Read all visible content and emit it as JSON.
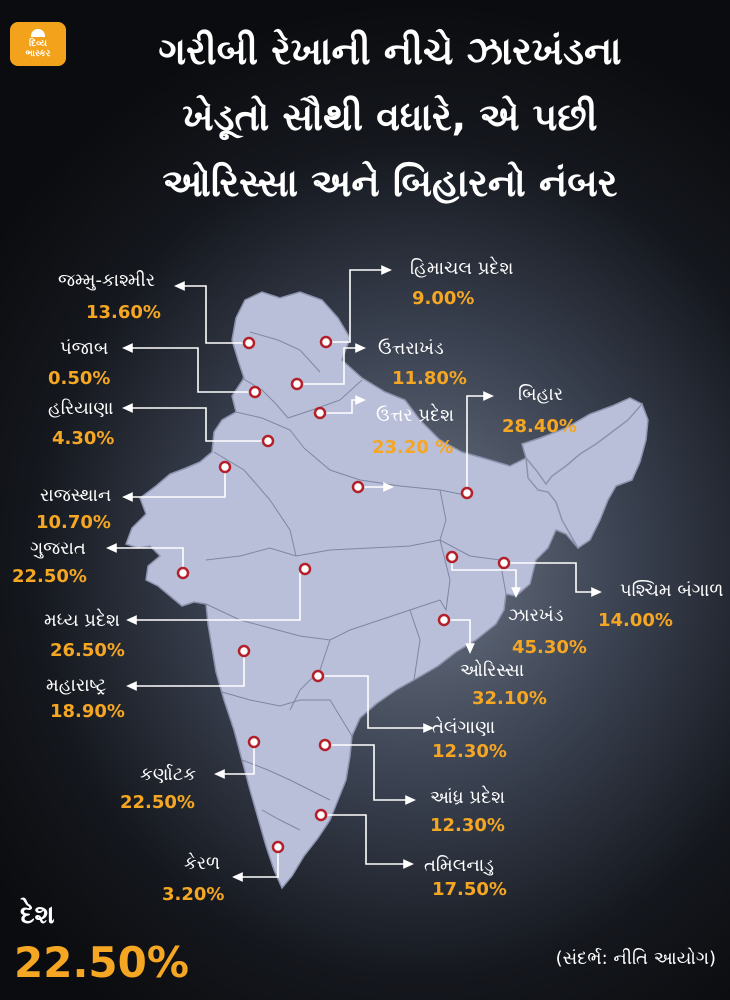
{
  "brand": {
    "line1": "દિવ્ય",
    "line2": "ભાસ્કર"
  },
  "title": [
    "ગરીબી રેખાની નીચે ઝારખંડના",
    "ખેડૂતો સૌથી વધારે, એ પછી",
    "ઓરિસ્સા અને બિહારનો નંબર"
  ],
  "states": [
    {
      "name": "જમ્મુ-કાશ્મીર",
      "value": "13.60%"
    },
    {
      "name": "હિમાચલ પ્રદેશ",
      "value": "9.00%"
    },
    {
      "name": "પંજાબ",
      "value": "0.50%"
    },
    {
      "name": "ઉત્તરાખંડ",
      "value": "11.80%"
    },
    {
      "name": "હરિયાણા",
      "value": "4.30%"
    },
    {
      "name": "ઉત્તર પ્રદેશ",
      "value": "23.20 %"
    },
    {
      "name": "બિહાર",
      "value": "28.40%"
    },
    {
      "name": "રાજસ્થાન",
      "value": "10.70%"
    },
    {
      "name": "ગુજરાત",
      "value": "22.50%"
    },
    {
      "name": "પશ્ચિમ બંગાળ",
      "value": "14.00%"
    },
    {
      "name": "મધ્ય પ્રદેશ",
      "value": "26.50%"
    },
    {
      "name": "ઝારખંડ",
      "value": "45.30%"
    },
    {
      "name": "ઓરિસ્સા",
      "value": "32.10%"
    },
    {
      "name": "મહારાષ્ટ્ર",
      "value": "18.90%"
    },
    {
      "name": "તેલંગાણા",
      "value": "12.30%"
    },
    {
      "name": "કર્ણાટક",
      "value": "22.50%"
    },
    {
      "name": "આંધ્ર પ્રદેશ",
      "value": "12.30%"
    },
    {
      "name": "કેરળ",
      "value": "3.20%"
    },
    {
      "name": "તમિલનાડુ",
      "value": "17.50%"
    }
  ],
  "country": {
    "label": "દેશ",
    "value": "22.50%"
  },
  "source": "(સંદર્ભ: નીતિ આયોગ)",
  "colors": {
    "map": "#b9bfd9",
    "accent": "#f5a623",
    "marker": "#b3202a"
  }
}
